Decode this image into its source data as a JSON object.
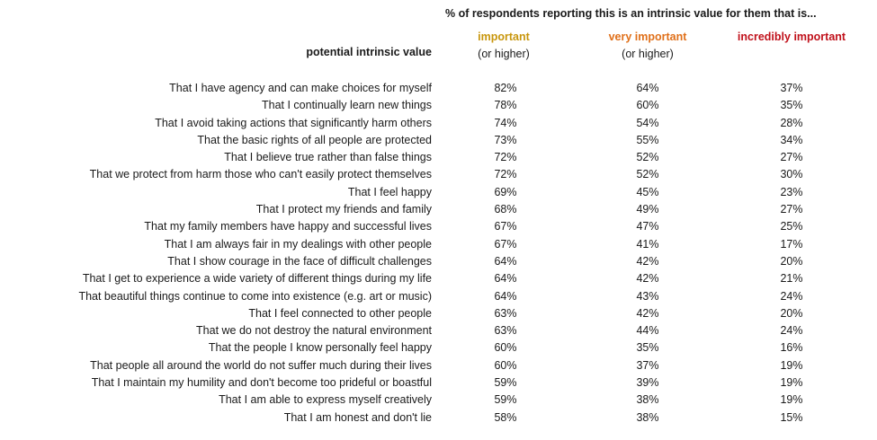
{
  "chart_data": {
    "type": "table",
    "title": "% of respondents reporting this is an intrinsic value for them that is...",
    "row_header": "potential intrinsic value",
    "columns": [
      {
        "label": "important",
        "sublabel": "(or higher)",
        "color": "#c8960c"
      },
      {
        "label": "very important",
        "sublabel": "(or higher)",
        "color": "#e0701a"
      },
      {
        "label": "incredibly important",
        "sublabel": "",
        "color": "#c0101a"
      }
    ],
    "rows": [
      {
        "label": "That I have agency and can make choices for myself",
        "values": [
          "82%",
          "64%",
          "37%"
        ]
      },
      {
        "label": "That I continually learn new things",
        "values": [
          "78%",
          "60%",
          "35%"
        ]
      },
      {
        "label": "That I avoid taking actions that significantly harm others",
        "values": [
          "74%",
          "54%",
          "28%"
        ]
      },
      {
        "label": "That the basic rights of all people are protected",
        "values": [
          "73%",
          "55%",
          "34%"
        ]
      },
      {
        "label": "That I believe true rather than false things",
        "values": [
          "72%",
          "52%",
          "27%"
        ]
      },
      {
        "label": "That we protect from harm those who can't easily protect themselves",
        "values": [
          "72%",
          "52%",
          "30%"
        ]
      },
      {
        "label": "That I feel happy",
        "values": [
          "69%",
          "45%",
          "23%"
        ]
      },
      {
        "label": "That I protect my friends and family",
        "values": [
          "68%",
          "49%",
          "27%"
        ]
      },
      {
        "label": "That my family members have happy and successful lives",
        "values": [
          "67%",
          "47%",
          "25%"
        ]
      },
      {
        "label": "That I am always fair in my dealings with other people",
        "values": [
          "67%",
          "41%",
          "17%"
        ]
      },
      {
        "label": "That I show courage in the face of difficult challenges",
        "values": [
          "64%",
          "42%",
          "20%"
        ]
      },
      {
        "label": "That I get to experience a wide variety of different things during my life",
        "values": [
          "64%",
          "42%",
          "21%"
        ]
      },
      {
        "label": "That beautiful things continue to come into existence (e.g. art or music)",
        "values": [
          "64%",
          "43%",
          "24%"
        ]
      },
      {
        "label": "That I feel connected to other people",
        "values": [
          "63%",
          "42%",
          "20%"
        ]
      },
      {
        "label": "That we do not destroy the natural environment",
        "values": [
          "63%",
          "44%",
          "24%"
        ]
      },
      {
        "label": "That the people I know personally feel happy",
        "values": [
          "60%",
          "35%",
          "16%"
        ]
      },
      {
        "label": "That people all around the world do not suffer much during their lives",
        "values": [
          "60%",
          "37%",
          "19%"
        ]
      },
      {
        "label": "That I maintain my humility and don't become too prideful or boastful",
        "values": [
          "59%",
          "39%",
          "19%"
        ]
      },
      {
        "label": "That I am able to express myself creatively",
        "values": [
          "59%",
          "38%",
          "19%"
        ]
      },
      {
        "label": "That I am honest and don't lie",
        "values": [
          "58%",
          "38%",
          "15%"
        ]
      }
    ]
  }
}
